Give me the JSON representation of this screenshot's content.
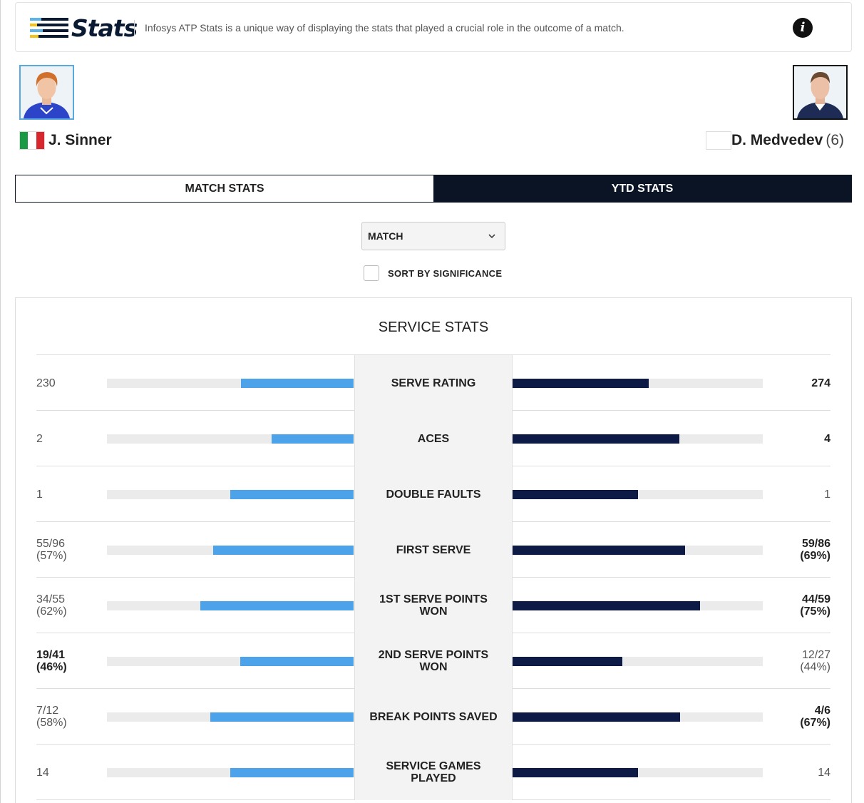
{
  "banner": {
    "logo_text": "Stats",
    "description": "Infosys ATP Stats is a unique way of displaying the stats that played a crucial role in the outcome of a match.",
    "info_icon": "info-icon"
  },
  "players": {
    "p1": {
      "name": "J. Sinner",
      "flag_colors": [
        "#1a9a45",
        "#ffffff",
        "#d7282f"
      ]
    },
    "p2": {
      "name": "D. Medvedev",
      "seed": "(6)"
    }
  },
  "tabs": [
    {
      "label": "MATCH STATS",
      "active": false
    },
    {
      "label": "YTD STATS",
      "active": true
    }
  ],
  "filter": {
    "selected": "MATCH",
    "sort_label": "SORT BY SIGNIFICANCE",
    "sort_checked": false
  },
  "colors": {
    "p1_bar": "#4da3ea",
    "p2_bar": "#0d1a45",
    "track": "#ebebeb",
    "active_tab": "#0b1424"
  },
  "section_title": "SERVICE STATS",
  "stats": [
    {
      "label": "SERVE RATING",
      "p1": [
        "230"
      ],
      "p2": [
        "274"
      ],
      "p1_bold": false,
      "p2_bold": true,
      "p1_fill": 0.457,
      "p2_fill": 0.543
    },
    {
      "label": "ACES",
      "p1": [
        "2"
      ],
      "p2": [
        "4"
      ],
      "p1_bold": false,
      "p2_bold": true,
      "p1_fill": 0.333,
      "p2_fill": 0.667
    },
    {
      "label": "DOUBLE FAULTS",
      "p1": [
        "1"
      ],
      "p2": [
        "1"
      ],
      "p1_bold": false,
      "p2_bold": false,
      "p1_fill": 0.5,
      "p2_fill": 0.5
    },
    {
      "label": "FIRST SERVE",
      "p1": [
        "55/96",
        "(57%)"
      ],
      "p2": [
        "59/86",
        "(69%)"
      ],
      "p1_bold": false,
      "p2_bold": true,
      "p1_fill": 0.57,
      "p2_fill": 0.69
    },
    {
      "label": "1ST SERVE POINTS WON",
      "p1": [
        "34/55",
        "(62%)"
      ],
      "p2": [
        "44/59",
        "(75%)"
      ],
      "p1_bold": false,
      "p2_bold": true,
      "p1_fill": 0.62,
      "p2_fill": 0.75
    },
    {
      "label": "2ND SERVE POINTS WON",
      "p1": [
        "19/41",
        "(46%)"
      ],
      "p2": [
        "12/27",
        "(44%)"
      ],
      "p1_bold": true,
      "p2_bold": false,
      "p1_fill": 0.46,
      "p2_fill": 0.44
    },
    {
      "label": "BREAK POINTS SAVED",
      "p1": [
        "7/12",
        "(58%)"
      ],
      "p2": [
        "4/6",
        "(67%)"
      ],
      "p1_bold": false,
      "p2_bold": true,
      "p1_fill": 0.58,
      "p2_fill": 0.67
    },
    {
      "label": "SERVICE GAMES PLAYED",
      "p1": [
        "14"
      ],
      "p2": [
        "14"
      ],
      "p1_bold": false,
      "p2_bold": false,
      "p1_fill": 0.5,
      "p2_fill": 0.5
    }
  ]
}
